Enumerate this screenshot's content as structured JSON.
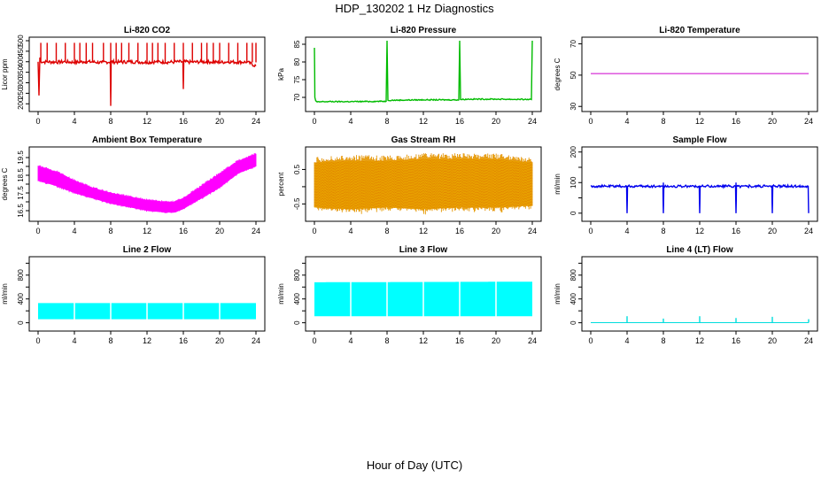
{
  "figure": {
    "title": "HDP_130202  1 Hz Diagnostics",
    "xlabel": "Hour of Day (UTC)"
  },
  "chart_data": [
    {
      "type": "line",
      "title": "Li-820 CO2",
      "ylabel": "Licor ppm",
      "color": "#dd0000",
      "xlim": [
        0,
        24
      ],
      "ylim": [
        180,
        500
      ],
      "xticks": [
        0,
        4,
        8,
        12,
        16,
        20,
        24
      ],
      "yticks": [
        200,
        250,
        300,
        350,
        400,
        450,
        500
      ],
      "baseline": 397,
      "noise": 8,
      "x": [
        0,
        0.1,
        0.2,
        0.3,
        0.5,
        1,
        2,
        3,
        4,
        5,
        6,
        7,
        7.95,
        8,
        8.05,
        9,
        10,
        11,
        12,
        13,
        14,
        15,
        15.95,
        16,
        16.05,
        17,
        18,
        19,
        20,
        21,
        22,
        23,
        24
      ],
      "y": [
        400,
        240,
        420,
        400,
        398,
        400,
        398,
        400,
        397,
        400,
        399,
        396,
        400,
        190,
        400,
        398,
        400,
        399,
        397,
        400,
        398,
        399,
        400,
        270,
        400,
        398,
        400,
        399,
        397,
        400,
        398,
        399,
        380
      ],
      "spikes_x": [
        0.3,
        1,
        2,
        3,
        4,
        4.6,
        5.3,
        6,
        7.2,
        8,
        8.6,
        9.2,
        10,
        11,
        12,
        12.6,
        13.2,
        14,
        15,
        16,
        17,
        18,
        18.6,
        19.3,
        20,
        21,
        22,
        23,
        23.6,
        24
      ],
      "spikes_y": [
        490,
        490,
        490,
        490,
        490,
        490,
        490,
        490,
        490,
        490,
        490,
        490,
        490,
        490,
        490,
        490,
        490,
        490,
        490,
        490,
        490,
        490,
        490,
        490,
        490,
        490,
        490,
        490,
        490,
        490
      ]
    },
    {
      "type": "line",
      "title": "Li-820 Pressure",
      "ylabel": "kPa",
      "color": "#00bb00",
      "xlim": [
        0,
        24
      ],
      "ylim": [
        67,
        86
      ],
      "xticks": [
        0,
        4,
        8,
        12,
        16,
        20,
        24
      ],
      "yticks": [
        70,
        75,
        80,
        85
      ],
      "baseline": 69,
      "noise": 0.15,
      "x": [
        0,
        0.05,
        0.15,
        0.3,
        1,
        4,
        7.9,
        8,
        8.1,
        9,
        12,
        15.9,
        16,
        16.1,
        17,
        20,
        23.9,
        24
      ],
      "y": [
        84,
        70,
        69,
        68.7,
        68.8,
        68.8,
        68.9,
        86,
        69.2,
        69.2,
        69.3,
        69.3,
        86,
        69.4,
        69.5,
        69.5,
        69.4,
        86
      ],
      "spikes_x": [],
      "spikes_y": []
    },
    {
      "type": "line",
      "title": "Li-820 Temperature",
      "ylabel": "degrees C",
      "color": "#cc00cc",
      "xlim": [
        0,
        24
      ],
      "ylim": [
        29,
        72
      ],
      "xticks": [
        0,
        4,
        8,
        12,
        16,
        20,
        24
      ],
      "yticks": [
        30,
        50,
        70
      ],
      "baseline": 51,
      "noise": 0,
      "x": [
        0,
        24
      ],
      "y": [
        51,
        51
      ],
      "spikes_x": [],
      "spikes_y": []
    },
    {
      "type": "area",
      "title": "Ambient Box Temperature",
      "ylabel": "degrees C",
      "color": "#ff00ff",
      "xlim": [
        0,
        24
      ],
      "ylim": [
        16.1,
        19.9
      ],
      "xticks": [
        0,
        4,
        8,
        12,
        16,
        20,
        24
      ],
      "yticks": [
        16.5,
        17.0,
        17.5,
        18.0,
        18.5,
        19.0,
        19.5
      ],
      "ytick_labels": [
        "16.5",
        "",
        "17.5",
        "",
        "18.5",
        "",
        "19.5"
      ],
      "x": [
        0,
        2,
        4,
        6,
        8,
        10,
        12,
        14,
        15,
        16,
        18,
        20,
        22,
        24
      ],
      "y_low": [
        18.2,
        17.9,
        17.5,
        17.2,
        16.9,
        16.7,
        16.5,
        16.4,
        16.4,
        16.6,
        17.2,
        17.8,
        18.6,
        19.0
      ],
      "y_high": [
        19.0,
        18.7,
        18.2,
        17.8,
        17.5,
        17.3,
        17.1,
        17.0,
        17.0,
        17.2,
        17.9,
        18.6,
        19.3,
        19.7
      ]
    },
    {
      "type": "area",
      "title": "Gas Stream RH",
      "ylabel": "percent",
      "color": "#e8a000",
      "xlim": [
        0,
        24
      ],
      "ylim": [
        -0.9,
        1.05
      ],
      "xticks": [
        0,
        4,
        8,
        12,
        16,
        20,
        24
      ],
      "yticks": [
        -0.5,
        0.0,
        0.5
      ],
      "ytick_labels": [
        "-0.5",
        "",
        "0.5"
      ],
      "x": [
        0,
        4,
        8,
        12,
        16,
        20,
        24
      ],
      "y_low": [
        -0.6,
        -0.65,
        -0.6,
        -0.65,
        -0.6,
        -0.6,
        -0.55
      ],
      "y_high": [
        0.7,
        0.75,
        0.75,
        0.8,
        0.8,
        0.8,
        0.7
      ]
    },
    {
      "type": "line",
      "title": "Sample Flow",
      "ylabel": "ml/min",
      "color": "#0000ee",
      "xlim": [
        0,
        24
      ],
      "ylim": [
        -15,
        205
      ],
      "xticks": [
        0,
        4,
        8,
        12,
        16,
        20,
        24
      ],
      "yticks": [
        0,
        50,
        100,
        150,
        200
      ],
      "ytick_labels": [
        "0",
        "",
        "100",
        "",
        "200"
      ],
      "baseline": 88,
      "noise": 4,
      "x": [
        0,
        3.95,
        4,
        4.05,
        7.95,
        8,
        8.05,
        11.95,
        12,
        12.05,
        15.95,
        16,
        16.05,
        19.95,
        20,
        20.05,
        23.95,
        24
      ],
      "y": [
        88,
        88,
        0,
        88,
        88,
        0,
        88,
        88,
        0,
        88,
        88,
        0,
        88,
        88,
        0,
        88,
        88,
        0
      ],
      "spikes_x": [
        8,
        16
      ],
      "spikes_y": [
        100,
        100
      ]
    },
    {
      "type": "area",
      "title": "Line 2 Flow",
      "ylabel": "ml/min",
      "color": "#00ffff",
      "xlim": [
        0,
        24
      ],
      "ylim": [
        -80,
        1050
      ],
      "xticks": [
        0,
        4,
        8,
        12,
        16,
        20,
        24
      ],
      "yticks": [
        0,
        200,
        400,
        600,
        800,
        1000
      ],
      "ytick_labels": [
        "0",
        "",
        "400",
        "",
        "800",
        ""
      ],
      "x": [
        0,
        24
      ],
      "y_low": [
        60,
        60
      ],
      "y_high": [
        330,
        330
      ],
      "gaps": [
        4,
        8,
        12,
        16,
        20
      ]
    },
    {
      "type": "area",
      "title": "Line 3 Flow",
      "ylabel": "ml/min",
      "color": "#00ffff",
      "xlim": [
        0,
        24
      ],
      "ylim": [
        -80,
        1050
      ],
      "xticks": [
        0,
        4,
        8,
        12,
        16,
        20,
        24
      ],
      "yticks": [
        0,
        200,
        400,
        600,
        800,
        1000
      ],
      "ytick_labels": [
        "0",
        "",
        "400",
        "",
        "800",
        ""
      ],
      "x": [
        0,
        24
      ],
      "y_low": [
        110,
        110
      ],
      "y_high": [
        680,
        690
      ],
      "gaps": [
        4,
        8,
        12,
        16,
        20
      ]
    },
    {
      "type": "line",
      "title": "Line 4 (LT) Flow",
      "ylabel": "ml/min",
      "color": "#00dddd",
      "xlim": [
        0,
        24
      ],
      "ylim": [
        -80,
        1050
      ],
      "xticks": [
        0,
        4,
        8,
        12,
        16,
        20,
        24
      ],
      "yticks": [
        0,
        200,
        400,
        600,
        800,
        1000
      ],
      "ytick_labels": [
        "0",
        "",
        "400",
        "",
        "800",
        ""
      ],
      "baseline": 2,
      "noise": 0,
      "x": [
        0,
        24
      ],
      "y": [
        2,
        2
      ],
      "spikes_x": [
        4,
        8,
        12,
        16,
        20,
        24
      ],
      "spikes_y": [
        110,
        70,
        110,
        80,
        100,
        60
      ]
    }
  ]
}
